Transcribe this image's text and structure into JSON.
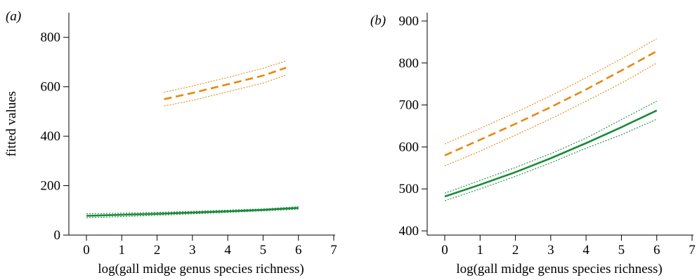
{
  "figure": {
    "panels": [
      "(a)",
      "(b)"
    ]
  },
  "chart_data": [
    {
      "type": "line",
      "panel_label": "(a)",
      "xlabel": "log(gall midge genus species richness)",
      "ylabel": "fitted values",
      "xlim": [
        0,
        7
      ],
      "ylim": [
        0,
        900
      ],
      "x_ticks": [
        "0",
        "1",
        "2",
        "3",
        "4",
        "5",
        "6",
        "7"
      ],
      "y_ticks": [
        "0",
        "200",
        "400",
        "600",
        "800"
      ],
      "grid": false,
      "legend": "none",
      "series": [
        {
          "style": "dashed",
          "color": "#e8870f",
          "x": [
            2.2,
            3.0,
            4.0,
            5.0,
            5.65
          ],
          "y": [
            550,
            575,
            610,
            645,
            677
          ],
          "ci_lower": [
            522,
            545,
            580,
            615,
            648
          ],
          "ci_upper": [
            578,
            603,
            638,
            675,
            705
          ]
        },
        {
          "style": "solid",
          "color": "#1a8a3a",
          "x": [
            0,
            1,
            2,
            3,
            4,
            5,
            6
          ],
          "y": [
            78,
            82,
            86,
            91,
            96,
            102,
            110
          ],
          "ci_lower": [
            70,
            75,
            80,
            86,
            92,
            98,
            105
          ],
          "ci_upper": [
            86,
            89,
            92,
            96,
            101,
            106,
            115
          ]
        }
      ]
    },
    {
      "type": "line",
      "panel_label": "(b)",
      "xlabel": "log(gall midge genus species richness)",
      "ylabel": "",
      "xlim": [
        0,
        7
      ],
      "ylim": [
        390,
        920
      ],
      "x_ticks": [
        "0",
        "1",
        "2",
        "3",
        "4",
        "5",
        "6",
        "7"
      ],
      "y_ticks": [
        "400",
        "500",
        "600",
        "700",
        "800",
        "900"
      ],
      "grid": false,
      "legend": "none",
      "series": [
        {
          "style": "dashed",
          "color": "#e8870f",
          "x": [
            0,
            1,
            2,
            3,
            4,
            5,
            6
          ],
          "y": [
            580,
            617,
            655,
            695,
            737,
            782,
            828
          ],
          "ci_lower": [
            555,
            590,
            628,
            667,
            709,
            752,
            800
          ],
          "ci_upper": [
            607,
            644,
            682,
            722,
            765,
            810,
            858
          ]
        },
        {
          "style": "solid",
          "color": "#1a8a3a",
          "x": [
            0,
            1,
            2,
            3,
            4,
            5,
            6
          ],
          "y": [
            482,
            510,
            540,
            573,
            609,
            647,
            687
          ],
          "ci_lower": [
            472,
            500,
            530,
            562,
            597,
            629,
            666
          ],
          "ci_upper": [
            490,
            520,
            551,
            584,
            621,
            665,
            709
          ]
        }
      ]
    }
  ]
}
